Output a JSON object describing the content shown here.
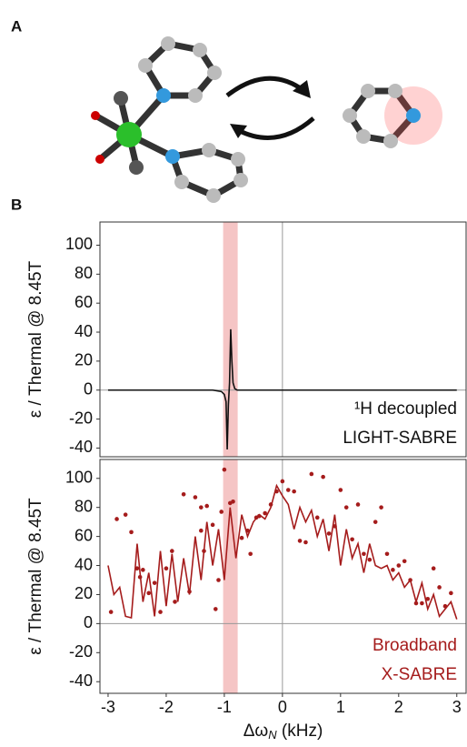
{
  "panels": [
    "A",
    "B"
  ],
  "chart_data": [
    {
      "type": "line",
      "ylabel": "ε / Thermal @ 8.45T",
      "xlim": [
        -3.14,
        3.16
      ],
      "ylim": [
        -46,
        116
      ],
      "yticks": [
        -40,
        -20,
        0,
        20,
        40,
        60,
        80,
        100
      ],
      "zero_lines": true,
      "highlight": {
        "x": [
          -1.02,
          -0.77
        ],
        "color": "#f2b6b6"
      },
      "annotation": [
        "¹H decoupled",
        "LIGHT-SABRE"
      ],
      "annotation_color": "#111111",
      "series": [
        {
          "mode": "line",
          "color": "#111111",
          "x": [
            -3,
            -1.2,
            -1.05,
            -1.0,
            -0.97,
            -0.95,
            -0.93,
            -0.91,
            -0.89,
            -0.87,
            -0.85,
            -0.82,
            -0.78,
            -0.7,
            3
          ],
          "values": [
            0,
            0,
            -1,
            -3,
            -8,
            -41,
            -10,
            5,
            42,
            20,
            5,
            1,
            0,
            0,
            0
          ]
        }
      ]
    },
    {
      "type": "line",
      "ylabel": "ε / Thermal @ 8.45T",
      "xlabel": [
        "Δω",
        "N",
        " (kHz)"
      ],
      "xlim": [
        -3.14,
        3.16
      ],
      "ylim": [
        -48,
        113
      ],
      "yticks": [
        -40,
        -20,
        0,
        20,
        40,
        60,
        80,
        100
      ],
      "xticks": [
        -3,
        -2,
        -1,
        0,
        1,
        2,
        3
      ],
      "zero_lines": true,
      "highlight": {
        "x": [
          -1.02,
          -0.77
        ],
        "color": "#f2b6b6"
      },
      "annotation": [
        "Broadband",
        "X-SABRE"
      ],
      "annotation_color": "#a51c1c",
      "series": [
        {
          "mode": "line",
          "color": "#a51c1c",
          "x": [
            -3.0,
            -2.9,
            -2.8,
            -2.7,
            -2.6,
            -2.5,
            -2.4,
            -2.3,
            -2.2,
            -2.1,
            -2.0,
            -1.9,
            -1.8,
            -1.7,
            -1.6,
            -1.5,
            -1.4,
            -1.3,
            -1.2,
            -1.1,
            -1.0,
            -0.9,
            -0.8,
            -0.7,
            -0.6,
            -0.5,
            -0.4,
            -0.3,
            -0.2,
            -0.1,
            0.0,
            0.1,
            0.2,
            0.3,
            0.4,
            0.5,
            0.6,
            0.7,
            0.8,
            0.9,
            1.0,
            1.1,
            1.2,
            1.3,
            1.4,
            1.5,
            1.6,
            1.7,
            1.8,
            1.9,
            2.0,
            2.1,
            2.2,
            2.3,
            2.4,
            2.5,
            2.6,
            2.7,
            2.8,
            2.9,
            3.0
          ],
          "values": [
            40,
            20,
            25,
            5,
            4,
            55,
            15,
            35,
            5,
            50,
            12,
            48,
            15,
            45,
            20,
            60,
            30,
            70,
            40,
            65,
            30,
            80,
            45,
            75,
            60,
            70,
            75,
            72,
            80,
            95,
            88,
            82,
            65,
            80,
            70,
            78,
            60,
            72,
            50,
            75,
            40,
            65,
            45,
            55,
            35,
            55,
            40,
            38,
            40,
            30,
            35,
            25,
            30,
            15,
            28,
            10,
            20,
            5,
            10,
            15,
            3
          ]
        },
        {
          "mode": "scatter",
          "color": "#a51c1c",
          "x": [
            -2.95,
            -2.85,
            -2.7,
            -2.6,
            -2.5,
            -2.45,
            -2.4,
            -2.3,
            -2.2,
            -2.1,
            -2.0,
            -1.9,
            -1.85,
            -1.7,
            -1.6,
            -1.5,
            -1.4,
            -1.4,
            -1.35,
            -1.3,
            -1.2,
            -1.15,
            -1.1,
            -1.05,
            -1.0,
            -0.9,
            -0.85,
            -0.7,
            -0.6,
            -0.55,
            -0.45,
            -0.4,
            -0.3,
            -0.2,
            -0.1,
            0.0,
            0.1,
            0.2,
            0.3,
            0.4,
            0.5,
            0.6,
            0.7,
            0.8,
            0.9,
            1.0,
            1.1,
            1.2,
            1.3,
            1.4,
            1.5,
            1.6,
            1.7,
            1.8,
            1.9,
            2.0,
            2.1,
            2.2,
            2.3,
            2.4,
            2.5,
            2.6,
            2.7,
            2.8,
            2.9
          ],
          "values": [
            8,
            72,
            75,
            63,
            38,
            32,
            37,
            21,
            28,
            8,
            38,
            50,
            15,
            89,
            22,
            87,
            80,
            64,
            50,
            81,
            68,
            10,
            30,
            77,
            106,
            83,
            84,
            59,
            64,
            48,
            73,
            74,
            76,
            82,
            91,
            98,
            92,
            91,
            57,
            56,
            103,
            73,
            101,
            62,
            67,
            92,
            80,
            58,
            82,
            48,
            44,
            70,
            80,
            48,
            37,
            40,
            43,
            30,
            14,
            14,
            17,
            38,
            25,
            12,
            21
          ]
        }
      ]
    }
  ]
}
